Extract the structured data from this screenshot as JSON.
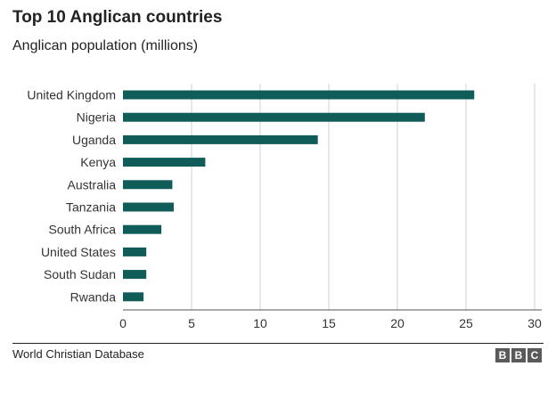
{
  "title": "Top 10 Anglican countries",
  "subtitle": "Anglican population (millions)",
  "source": "World Christian Database",
  "logo": [
    "B",
    "B",
    "C"
  ],
  "colors": {
    "bar": "#0f5c58",
    "grid": "#d0d0d0",
    "axis": "#555555"
  },
  "chart_data": {
    "type": "bar",
    "orientation": "horizontal",
    "title": "Top 10 Anglican countries",
    "subtitle": "Anglican population (millions)",
    "categories": [
      "United Kingdom",
      "Nigeria",
      "Uganda",
      "Kenya",
      "Australia",
      "Tanzania",
      "South Africa",
      "United States",
      "South Sudan",
      "Rwanda"
    ],
    "values": [
      25.6,
      22.0,
      14.2,
      6.0,
      3.6,
      3.7,
      2.8,
      1.7,
      1.7,
      1.5
    ],
    "xticks": [
      "0",
      "5",
      "10",
      "15",
      "20",
      "25",
      "30"
    ],
    "xlim": [
      0,
      30
    ],
    "xlabel": "",
    "ylabel": "",
    "grid": true
  }
}
